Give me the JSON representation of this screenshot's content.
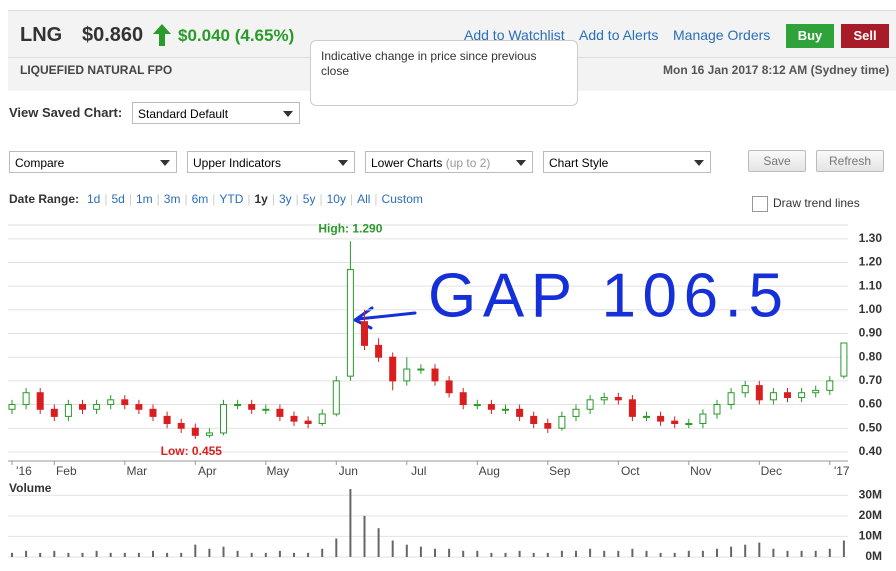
{
  "header": {
    "symbol": "LNG",
    "price": "$0.860",
    "change": "$0.040 (4.65%)",
    "links": [
      "Add to Watchlist",
      "Add to Alerts",
      "Manage Orders"
    ],
    "buy": "Buy",
    "sell": "Sell",
    "tooltip": "Indicative change in price since previous close",
    "company": "LIQUEFIED NATURAL FPO",
    "timestamp": "Mon 16 Jan 2017 8:12 AM (Sydney time)"
  },
  "controls": {
    "saved_label": "View Saved Chart:",
    "saved_value": "Standard Default",
    "compare": "Compare",
    "upper": "Upper Indicators",
    "lower": "Lower Charts",
    "lower_note": "(up to 2)",
    "style": "Chart Style",
    "save": "Save",
    "refresh": "Refresh",
    "range_label": "Date Range:",
    "ranges": [
      "1d",
      "5d",
      "1m",
      "3m",
      "6m",
      "YTD",
      "1y",
      "3y",
      "5y",
      "10y",
      "All",
      "Custom"
    ],
    "trend": "Draw trend lines"
  },
  "chart_data": [
    {
      "type": "candlestick",
      "up_color": "#2a9a2a",
      "down_color": "#d81e1e",
      "categories": [
        "'16",
        null,
        null,
        "Feb",
        null,
        null,
        null,
        null,
        "Mar",
        null,
        null,
        null,
        null,
        "Apr",
        null,
        null,
        null,
        null,
        "May",
        null,
        null,
        null,
        null,
        "Jun",
        null,
        null,
        null,
        null,
        "Jul",
        null,
        null,
        null,
        null,
        "Aug",
        null,
        null,
        null,
        null,
        "Sep",
        null,
        null,
        null,
        null,
        "Oct",
        null,
        null,
        null,
        null,
        "Nov",
        null,
        null,
        null,
        null,
        "Dec",
        null,
        null,
        null,
        null,
        "'17",
        null
      ],
      "open": [
        0.58,
        0.6,
        0.65,
        0.58,
        0.55,
        0.6,
        0.58,
        0.6,
        0.62,
        0.6,
        0.58,
        0.55,
        0.52,
        0.5,
        0.47,
        0.48,
        0.6,
        0.6,
        0.58,
        0.58,
        0.55,
        0.53,
        0.52,
        0.56,
        0.72,
        0.95,
        0.85,
        0.8,
        0.7,
        0.75,
        0.75,
        0.7,
        0.65,
        0.6,
        0.6,
        0.58,
        0.58,
        0.55,
        0.52,
        0.5,
        0.55,
        0.58,
        0.62,
        0.63,
        0.62,
        0.55,
        0.55,
        0.53,
        0.52,
        0.52,
        0.56,
        0.6,
        0.65,
        0.68,
        0.62,
        0.65,
        0.63,
        0.65,
        0.66,
        0.72
      ],
      "high": [
        0.62,
        0.67,
        0.67,
        0.6,
        0.62,
        0.62,
        0.62,
        0.64,
        0.64,
        0.62,
        0.6,
        0.57,
        0.54,
        0.52,
        0.5,
        0.62,
        0.62,
        0.62,
        0.6,
        0.6,
        0.57,
        0.55,
        0.58,
        0.72,
        1.29,
        1.0,
        0.88,
        0.82,
        0.8,
        0.77,
        0.77,
        0.72,
        0.67,
        0.62,
        0.62,
        0.6,
        0.6,
        0.57,
        0.54,
        0.57,
        0.6,
        0.64,
        0.65,
        0.65,
        0.64,
        0.57,
        0.57,
        0.55,
        0.54,
        0.58,
        0.62,
        0.67,
        0.7,
        0.7,
        0.67,
        0.67,
        0.67,
        0.68,
        0.72,
        0.86
      ],
      "low": [
        0.56,
        0.58,
        0.56,
        0.53,
        0.53,
        0.56,
        0.56,
        0.58,
        0.58,
        0.56,
        0.53,
        0.5,
        0.48,
        0.455,
        0.46,
        0.47,
        0.58,
        0.56,
        0.56,
        0.53,
        0.51,
        0.5,
        0.51,
        0.55,
        0.7,
        0.83,
        0.78,
        0.66,
        0.68,
        0.73,
        0.68,
        0.63,
        0.58,
        0.58,
        0.56,
        0.56,
        0.53,
        0.5,
        0.48,
        0.49,
        0.53,
        0.56,
        0.6,
        0.6,
        0.53,
        0.53,
        0.51,
        0.5,
        0.5,
        0.5,
        0.54,
        0.58,
        0.63,
        0.6,
        0.6,
        0.61,
        0.61,
        0.63,
        0.64,
        0.71
      ],
      "close": [
        0.6,
        0.65,
        0.58,
        0.55,
        0.6,
        0.58,
        0.6,
        0.62,
        0.6,
        0.58,
        0.55,
        0.52,
        0.5,
        0.47,
        0.48,
        0.6,
        0.6,
        0.58,
        0.58,
        0.55,
        0.53,
        0.52,
        0.56,
        0.7,
        1.17,
        0.85,
        0.8,
        0.7,
        0.75,
        0.75,
        0.7,
        0.65,
        0.6,
        0.6,
        0.58,
        0.58,
        0.55,
        0.52,
        0.5,
        0.55,
        0.58,
        0.62,
        0.63,
        0.62,
        0.55,
        0.55,
        0.53,
        0.52,
        0.52,
        0.56,
        0.6,
        0.65,
        0.68,
        0.62,
        0.65,
        0.63,
        0.65,
        0.66,
        0.7,
        0.86
      ],
      "ylim": [
        0.37,
        1.35
      ],
      "yticks": [
        {
          "value": 0.4,
          "label": "0.40"
        },
        {
          "value": 0.5,
          "label": "0.50"
        },
        {
          "value": 0.6,
          "label": "0.60"
        },
        {
          "value": 0.7,
          "label": "0.70"
        },
        {
          "value": 0.8,
          "label": "0.80"
        },
        {
          "value": 0.9,
          "label": "0.90"
        },
        {
          "value": 1.0,
          "label": "1.00"
        },
        {
          "value": 1.1,
          "label": "1.10"
        },
        {
          "value": 1.2,
          "label": "1.20"
        },
        {
          "value": 1.3,
          "label": "1.30"
        }
      ],
      "grid": true,
      "annotations": [
        "High: 1.290",
        "Low: 0.455",
        "GAP 106.5"
      ]
    },
    {
      "type": "bar",
      "title": "Volume",
      "color": "#666666",
      "values": [
        2,
        3,
        2,
        3,
        2,
        2,
        3,
        2,
        2,
        2,
        3,
        2,
        2,
        6,
        4,
        5,
        3,
        2,
        2,
        3,
        2,
        2,
        4,
        9,
        33,
        20,
        14,
        8,
        6,
        5,
        4,
        4,
        3,
        3,
        2,
        2,
        3,
        2,
        2,
        3,
        3,
        4,
        3,
        3,
        4,
        3,
        2,
        2,
        3,
        3,
        4,
        5,
        6,
        7,
        4,
        3,
        3,
        3,
        4,
        8
      ],
      "ylim": [
        0,
        34
      ],
      "yticks": [
        {
          "value": 0,
          "label": "0M"
        },
        {
          "value": 10,
          "label": "10M"
        },
        {
          "value": 20,
          "label": "20M"
        },
        {
          "value": 30,
          "label": "30M"
        }
      ],
      "grid": true
    }
  ]
}
